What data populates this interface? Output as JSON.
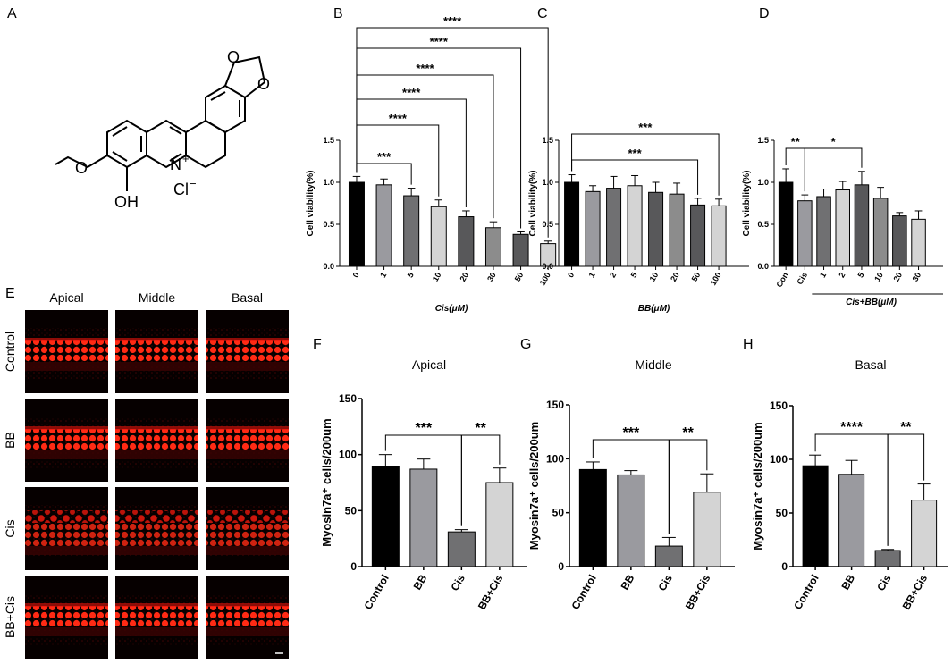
{
  "panel_a": {
    "letter": "A",
    "structure_labels": {
      "oh": "OH",
      "n_plus": "N",
      "charge": "+",
      "chloride": "Cl",
      "minus": "−"
    }
  },
  "panel_e": {
    "letter": "E",
    "columns": [
      "Apical",
      "Middle",
      "Basal"
    ],
    "rows": [
      "Control",
      "BB",
      "Cis",
      "BB+Cis"
    ],
    "stain_color": "#e8140c"
  },
  "colors": {
    "bar_black": "#000000",
    "bar_mid": "#9a9a9f",
    "bar_dark": "#707072",
    "bar_light": "#d4d4d4",
    "bar_darker": "#58585a",
    "bar_grey2": "#8c8c8c"
  },
  "chart_data": [
    {
      "panel": "B",
      "type": "bar",
      "categories": [
        "0",
        "1",
        "5",
        "10",
        "20",
        "30",
        "50",
        "100"
      ],
      "values": [
        1.0,
        0.97,
        0.84,
        0.71,
        0.59,
        0.46,
        0.38,
        0.27
      ],
      "errors": [
        0.07,
        0.07,
        0.09,
        0.08,
        0.07,
        0.07,
        0.03,
        0.03
      ],
      "xlabel": "Cis(μM)",
      "ylabel": "Cell viability(%)",
      "ylim": [
        0,
        1.5
      ],
      "yticks": [
        "0.0",
        "0.5",
        "1.0",
        "1.5"
      ],
      "significance": [
        {
          "from": 0,
          "to": 2,
          "label": "***"
        },
        {
          "from": 0,
          "to": 3,
          "label": "****"
        },
        {
          "from": 0,
          "to": 4,
          "label": "****"
        },
        {
          "from": 0,
          "to": 5,
          "label": "****"
        },
        {
          "from": 0,
          "to": 6,
          "label": "****"
        },
        {
          "from": 0,
          "to": 7,
          "label": "****"
        }
      ]
    },
    {
      "panel": "C",
      "type": "bar",
      "categories": [
        "0",
        "1",
        "2",
        "5",
        "10",
        "20",
        "50",
        "100"
      ],
      "values": [
        1.0,
        0.89,
        0.93,
        0.96,
        0.88,
        0.86,
        0.73,
        0.72
      ],
      "errors": [
        0.09,
        0.07,
        0.14,
        0.12,
        0.12,
        0.13,
        0.08,
        0.08
      ],
      "xlabel": "BB(μM)",
      "ylabel": "Cell viability(%)",
      "ylim": [
        0,
        1.5
      ],
      "yticks": [
        "0.0",
        "0.5",
        "1.0",
        "1.5"
      ],
      "significance": [
        {
          "from": 0,
          "to": 6,
          "label": "***"
        },
        {
          "from": 0,
          "to": 7,
          "label": "***"
        }
      ]
    },
    {
      "panel": "D",
      "type": "bar",
      "categories": [
        "Con",
        "Cis",
        "1",
        "2",
        "5",
        "10",
        "20",
        "30"
      ],
      "values": [
        1.0,
        0.78,
        0.83,
        0.91,
        0.97,
        0.81,
        0.6,
        0.56
      ],
      "errors": [
        0.16,
        0.07,
        0.09,
        0.1,
        0.16,
        0.13,
        0.04,
        0.1
      ],
      "xlabel": "Cis+BB(μM)",
      "ylabel": "Cell viability(%)",
      "ylim": [
        0,
        1.5
      ],
      "yticks": [
        "0.0",
        "0.5",
        "1.0",
        "1.5"
      ],
      "significance": [
        {
          "from": 0,
          "to": 1,
          "label": "**"
        },
        {
          "from": 1,
          "to": 4,
          "label": "*"
        }
      ]
    },
    {
      "panel": "F",
      "type": "bar",
      "title": "Apical",
      "categories": [
        "Control",
        "BB",
        "Cis",
        "BB+Cis"
      ],
      "values": [
        89,
        87,
        31,
        75
      ],
      "errors": [
        11,
        9,
        2,
        13
      ],
      "ylabel": "Myosin7a⁺ cells/200um",
      "ylim": [
        0,
        150
      ],
      "yticks": [
        "0",
        "50",
        "100",
        "150"
      ],
      "significance": [
        {
          "from": 0,
          "to": 2,
          "label": "***"
        },
        {
          "from": 2,
          "to": 3,
          "label": "**"
        }
      ]
    },
    {
      "panel": "G",
      "type": "bar",
      "title": "Middle",
      "categories": [
        "Control",
        "BB",
        "Cis",
        "BB+Cis"
      ],
      "values": [
        90,
        85,
        19,
        69
      ],
      "errors": [
        7,
        4,
        8,
        17
      ],
      "ylabel": "Myosin7a⁺ cells/200um",
      "ylim": [
        0,
        150
      ],
      "yticks": [
        "0",
        "50",
        "100",
        "150"
      ],
      "significance": [
        {
          "from": 0,
          "to": 2,
          "label": "***"
        },
        {
          "from": 2,
          "to": 3,
          "label": "**"
        }
      ]
    },
    {
      "panel": "H",
      "type": "bar",
      "title": "Basal",
      "categories": [
        "Control",
        "BB",
        "Cis",
        "BB+Cis"
      ],
      "values": [
        94,
        86,
        15,
        62
      ],
      "errors": [
        10,
        13,
        1,
        15
      ],
      "ylabel": "Myosin7a⁺ cells/200um",
      "ylim": [
        0,
        150
      ],
      "yticks": [
        "0",
        "50",
        "100",
        "150"
      ],
      "significance": [
        {
          "from": 0,
          "to": 2,
          "label": "****"
        },
        {
          "from": 2,
          "to": 3,
          "label": "**"
        }
      ]
    }
  ]
}
